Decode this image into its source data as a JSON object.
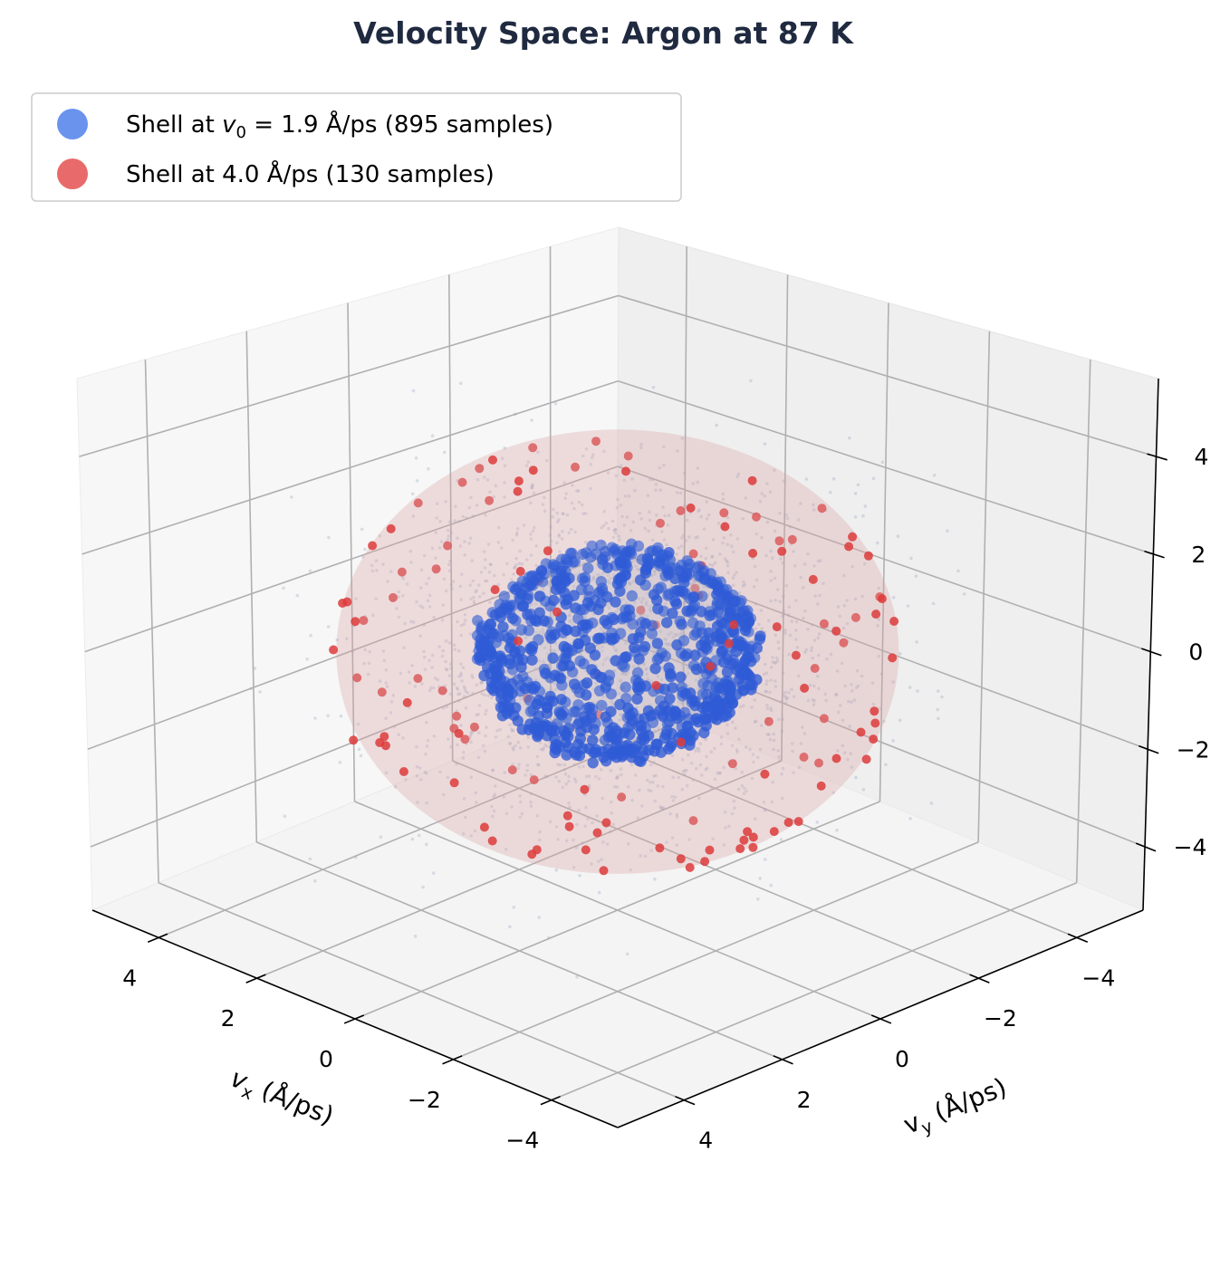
{
  "chart_data": {
    "type": "scatter3d",
    "title": "Velocity Space: Argon at 87 K",
    "xlabel": {
      "var": "v",
      "sub": "x",
      "unit": " (Å/ps)"
    },
    "ylabel": {
      "var": "v",
      "sub": "y",
      "unit": " (Å/ps)"
    },
    "zlabel": "",
    "xlim": [
      -5.35,
      5.35
    ],
    "ylim": [
      -5.35,
      5.35
    ],
    "zlim": [
      -5.3,
      5.6
    ],
    "xticks": [
      4,
      2,
      0,
      -2,
      -4
    ],
    "yticks": [
      4,
      2,
      0,
      -2,
      -4
    ],
    "zticks": [
      4,
      2,
      0,
      -2,
      -4
    ],
    "tick_labels": {
      "x": [
        "4",
        "2",
        "0",
        "−2",
        "−4"
      ],
      "y": [
        "4",
        "2",
        "0",
        "−2",
        "−4"
      ],
      "z": [
        "4",
        "2",
        "0",
        "−2",
        "−4"
      ]
    },
    "grid": true,
    "legend_position": "top-left",
    "series": [
      {
        "name": "Shell at v0 = 1.9 Å/ps  (895 samples)",
        "legend": {
          "prefix": "Shell at ",
          "var": "v",
          "sub": "0",
          "rest": " = 1.9 Å/ps  (895 samples)"
        },
        "shell_radius": 1.9,
        "count": 895,
        "color": "#2f5bd6",
        "legend_color": "#6a93ee"
      },
      {
        "name": "Shell at 4.0 Å/ps  (130 samples)",
        "legend": {
          "prefix": "Shell at 4.0 Å/ps  (130 samples)"
        },
        "shell_radius": 4.0,
        "count": 130,
        "color": "#dd3b3b",
        "legend_color": "#e86a6a"
      }
    ],
    "background_samples": {
      "color": "#9aa8c2",
      "distribution": "Maxwell-Boltzmann"
    },
    "surfaces": [
      {
        "radius": 4.0,
        "color": "#d9a3a6"
      },
      {
        "radius": 1.9,
        "color": "#b8bccb"
      }
    ],
    "pane_colors": {
      "x_pane": "#f7f7f7",
      "y_pane": "#efefef",
      "floor": "#f4f4f4",
      "grid": "#b0b0b0"
    }
  }
}
